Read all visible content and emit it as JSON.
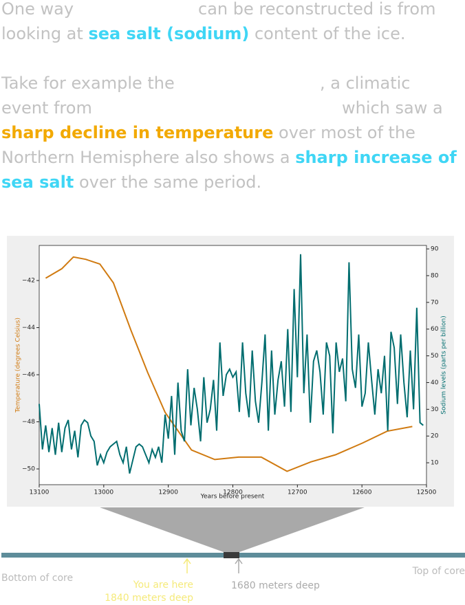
{
  "text": {
    "line1": [
      "One way",
      "can be reconstructed is from"
    ],
    "line2": [
      "looking at",
      "sea salt (sodium)",
      "content of the ice."
    ],
    "line3": [
      "Take for example the",
      ", a climatic"
    ],
    "line4": [
      "event from",
      "which saw a"
    ],
    "line5": [
      "sharp decline in temperature",
      "over most of the"
    ],
    "line6": [
      "Northern Hemisphere also shows a",
      "sharp increase of"
    ],
    "line7": [
      "sea salt",
      "over the same period."
    ]
  },
  "core": {
    "bottom": "Bottom of core",
    "top": "Top of core",
    "here": "You are here",
    "here_depth": "1840 meters deep",
    "window_depth": "1680 meters deep"
  },
  "chart_data": {
    "type": "line",
    "xlabel": "Years before present",
    "ylabel": "Temperature (degrees Celsius)",
    "y2label": "Sodium levels (parts per billion)",
    "xlim": [
      13100,
      12500
    ],
    "xticks": [
      13100,
      13000,
      12900,
      12800,
      12700,
      12600,
      12500
    ],
    "ylim": [
      -50.67,
      -40.51
    ],
    "yticks": [
      {
        "value": -50,
        "label": "−50"
      },
      {
        "value": -48,
        "label": "−48"
      },
      {
        "value": -46,
        "label": "−46"
      },
      {
        "value": -44,
        "label": "−44"
      },
      {
        "value": -42,
        "label": "−42"
      }
    ],
    "y2lim": [
      1.8,
      91.3
    ],
    "y2ticks": [
      10,
      20,
      30,
      40,
      50,
      60,
      70,
      80,
      90
    ],
    "series": [
      {
        "name": "Temperature",
        "color": "#d07a10",
        "axis": "y",
        "x": [
          13090,
          13065,
          13047,
          13028,
          13006,
          12985,
          12958,
          12932,
          12905,
          12864,
          12828,
          12791,
          12756,
          12716,
          12679,
          12641,
          12599,
          12561,
          12522
        ],
        "values": [
          -41.9,
          -41.5,
          -41.0,
          -41.1,
          -41.3,
          -42.1,
          -44.1,
          -45.9,
          -47.6,
          -49.2,
          -49.6,
          -49.5,
          -49.5,
          -50.1,
          -49.7,
          -49.4,
          -48.9,
          -48.4,
          -48.2
        ]
      },
      {
        "name": "Sodium",
        "color": "#006d6f",
        "axis": "y2",
        "x": [
          13100,
          13095,
          13090,
          13085,
          13080,
          13075,
          13070,
          13065,
          13060,
          13055,
          13050,
          13045,
          13040,
          13035,
          13030,
          13025,
          13020,
          13015,
          13010,
          13005,
          13000,
          12995,
          12990,
          12985,
          12980,
          12975,
          12970,
          12965,
          12960,
          12955,
          12950,
          12945,
          12940,
          12935,
          12930,
          12925,
          12920,
          12915,
          12910,
          12905,
          12900,
          12895,
          12890,
          12885,
          12880,
          12875,
          12870,
          12865,
          12860,
          12855,
          12850,
          12845,
          12840,
          12835,
          12830,
          12825,
          12820,
          12815,
          12810,
          12805,
          12800,
          12795,
          12790,
          12785,
          12780,
          12775,
          12770,
          12765,
          12760,
          12755,
          12750,
          12745,
          12740,
          12735,
          12730,
          12725,
          12720,
          12715,
          12710,
          12705,
          12700,
          12695,
          12690,
          12685,
          12680,
          12675,
          12670,
          12665,
          12660,
          12655,
          12650,
          12645,
          12640,
          12635,
          12630,
          12625,
          12620,
          12615,
          12610,
          12605,
          12600,
          12595,
          12590,
          12585,
          12580,
          12575,
          12570,
          12565,
          12560,
          12555,
          12550,
          12545,
          12540,
          12535,
          12530,
          12525,
          12520,
          12515,
          12510,
          12505
        ],
        "values": [
          32,
          15,
          24,
          14,
          23,
          13,
          25,
          14,
          23,
          26,
          15,
          22,
          12,
          24,
          26,
          25,
          20,
          18,
          9,
          13,
          10,
          14,
          16,
          17,
          18,
          13,
          10,
          16,
          6,
          11,
          16,
          17,
          16,
          13,
          10,
          15,
          12,
          16,
          10,
          28,
          19,
          35,
          13,
          40,
          22,
          18,
          45,
          24,
          38,
          30,
          18,
          42,
          25,
          30,
          41,
          22,
          55,
          35,
          43,
          45,
          42,
          44,
          29,
          55,
          36,
          27,
          52,
          33,
          25,
          40,
          58,
          22,
          52,
          28,
          41,
          48,
          31,
          60,
          29,
          75,
          42,
          88,
          36,
          58,
          25,
          48,
          52,
          44,
          28,
          55,
          50,
          21,
          55,
          44,
          49,
          33,
          85,
          45,
          38,
          58,
          31,
          36,
          55,
          41,
          28,
          45,
          36,
          50,
          22,
          59,
          53,
          32,
          58,
          40,
          27,
          52,
          30,
          68,
          25,
          24
        ]
      }
    ]
  }
}
